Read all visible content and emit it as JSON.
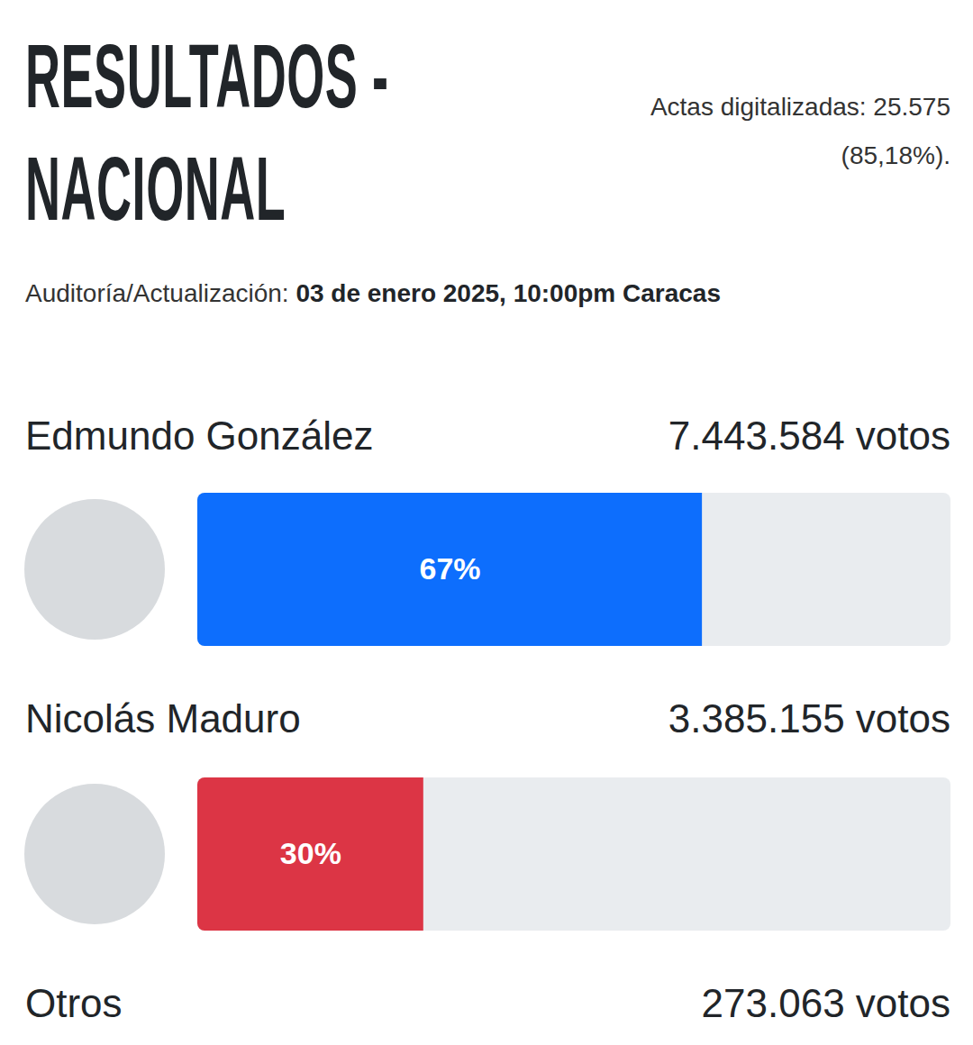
{
  "header": {
    "title": "RESULTADOS - NACIONAL",
    "actas": "Actas digitalizadas: 25.575 (85,18%).",
    "audit_label": "Auditoría/Actualización:",
    "audit_value": "03 de enero 2025, 10:00pm Caracas"
  },
  "chart_data": {
    "type": "bar",
    "orientation": "horizontal",
    "categories": [
      "Edmundo González",
      "Nicolás Maduro",
      "Otros"
    ],
    "values": [
      67,
      30,
      null
    ],
    "value_labels": [
      "67%",
      "30%",
      null
    ],
    "vote_labels": [
      "7.443.584 votos",
      "3.385.155 votos",
      "273.063 votos"
    ],
    "colors": [
      "#0d6efd",
      "#dc3545",
      null
    ],
    "xlim": [
      0,
      100
    ],
    "data_labels": true,
    "tick_labels": false
  }
}
